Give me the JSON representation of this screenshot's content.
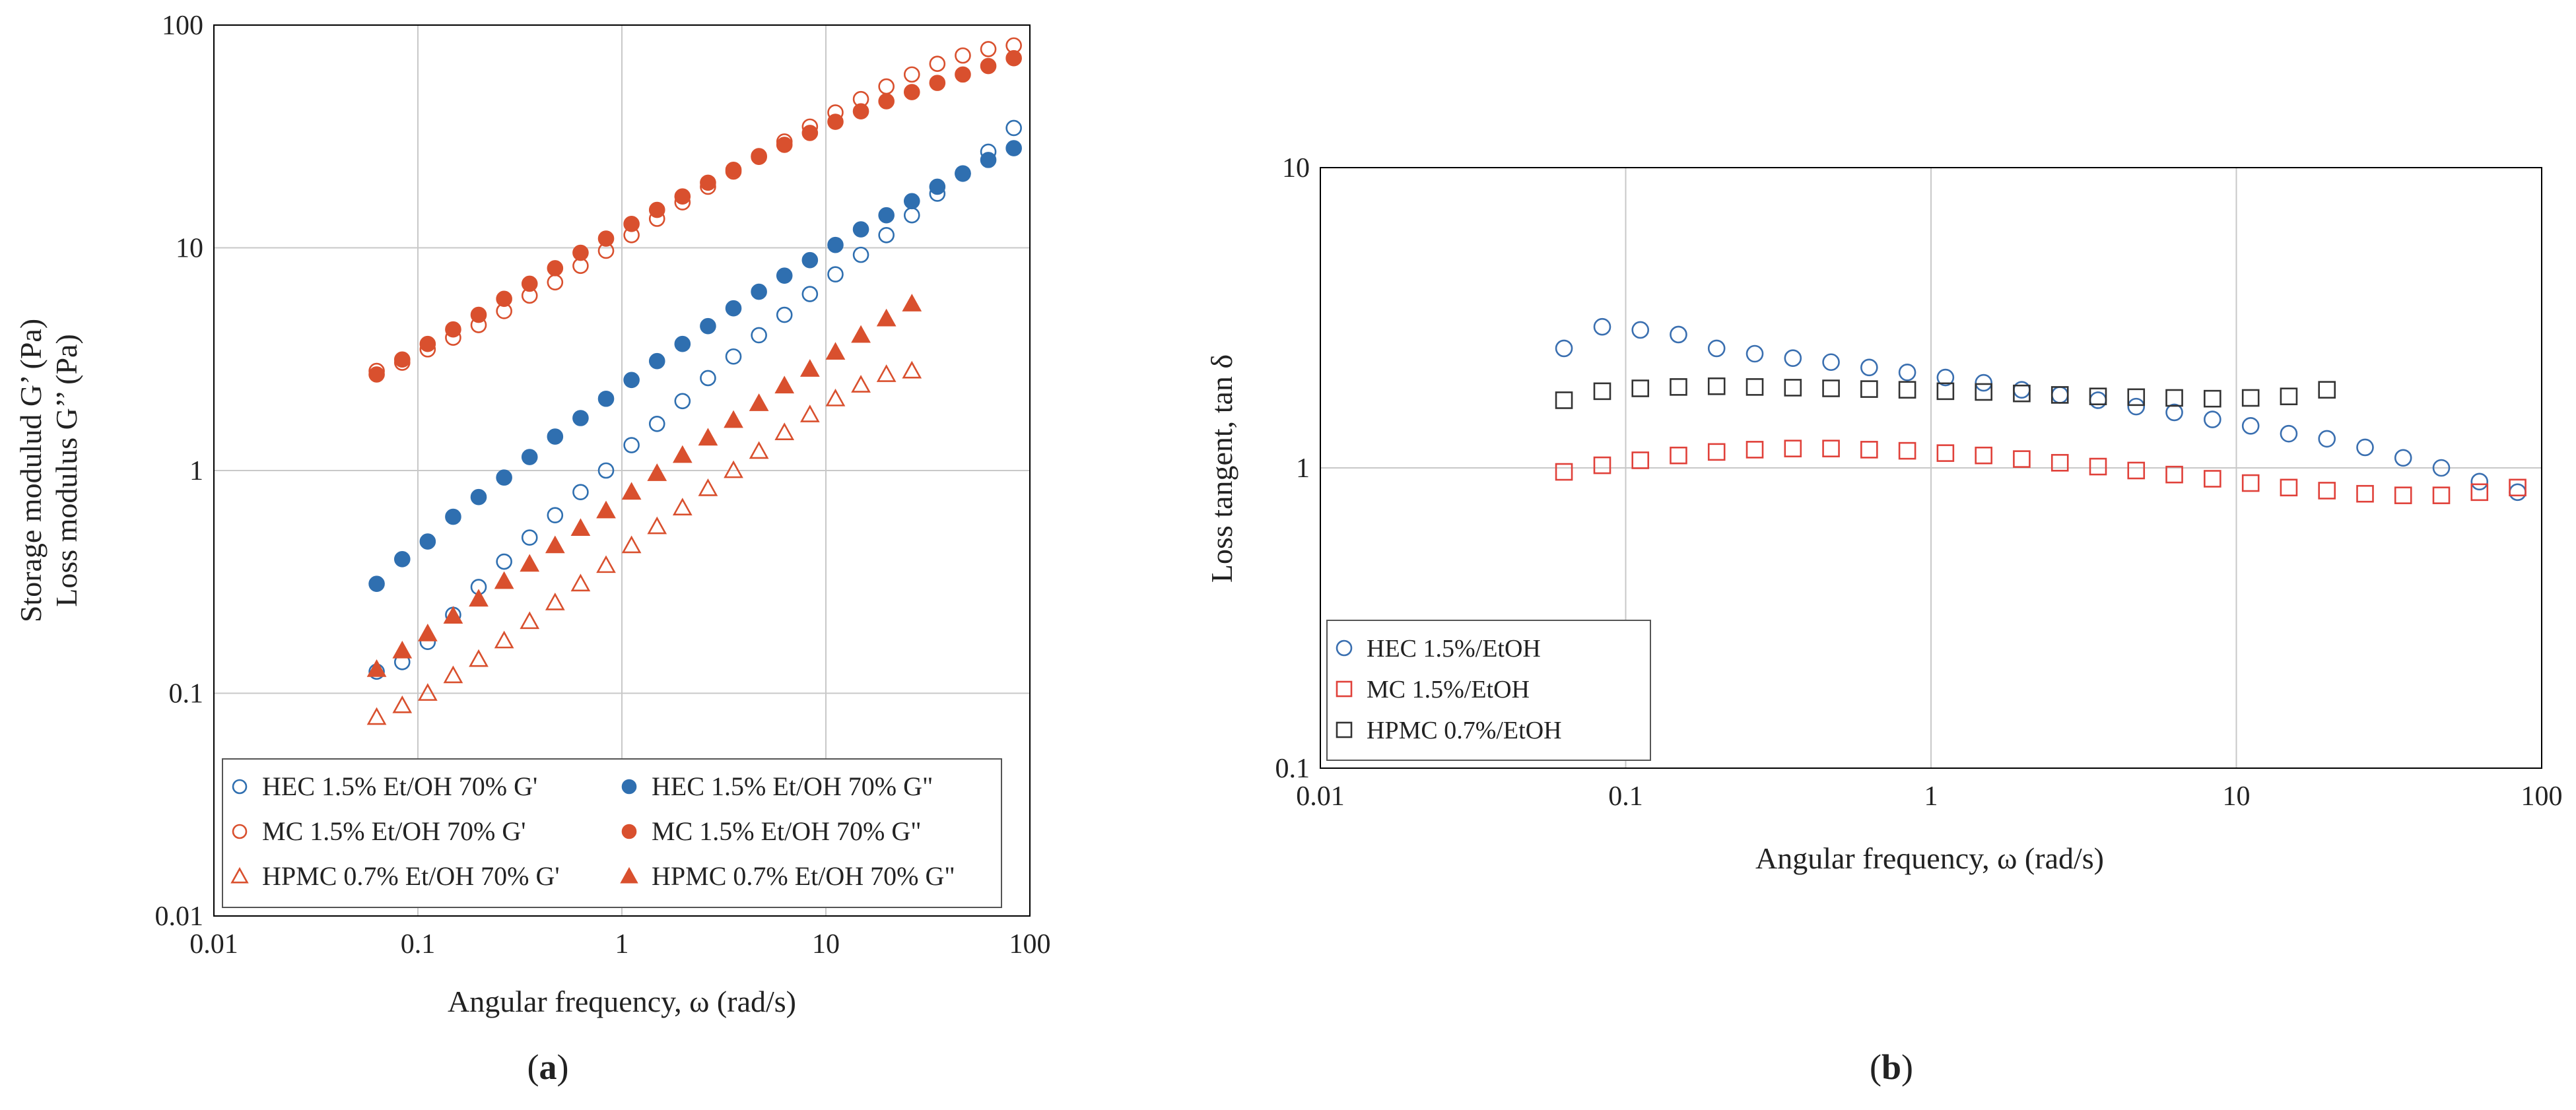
{
  "chart_data": [
    {
      "type": "scatter",
      "panel_label": "a",
      "xlabel": "Angular frequency, ω (rad/s)",
      "ylabel_lines": [
        "Storage modulud G’ (Pa)",
        "Loss modulus G’’ (Pa)"
      ],
      "x_scale": "log",
      "y_scale": "log",
      "xlim": [
        0.01,
        100
      ],
      "ylim": [
        0.01,
        100
      ],
      "x_ticks": [
        0.01,
        0.1,
        1,
        10,
        100
      ],
      "x_tick_labels": [
        "0.01",
        "0.1",
        "1",
        "10",
        "100"
      ],
      "y_ticks": [
        0.01,
        0.1,
        1,
        10,
        100
      ],
      "y_tick_labels": [
        "0.01",
        "0.1",
        "1",
        "10",
        "100"
      ],
      "grid": true,
      "legend_position": "bottom",
      "legend_columns": 2,
      "x": [
        0.0628,
        0.0838,
        0.1117,
        0.1489,
        0.1985,
        0.2647,
        0.3529,
        0.4705,
        0.6273,
        0.8363,
        1.115,
        1.487,
        1.982,
        2.643,
        3.524,
        4.698,
        6.264,
        8.352,
        11.14,
        14.85,
        19.8,
        26.4,
        35.19,
        46.92,
        62.56,
        83.41
      ],
      "series": [
        {
          "name": "HEC 1.5% Et/OH 70% G'",
          "color": "#2f6fb0",
          "marker": "circle",
          "filled": false,
          "values": [
            0.125,
            0.138,
            0.17,
            0.225,
            0.3,
            0.39,
            0.5,
            0.63,
            0.8,
            1.0,
            1.3,
            1.62,
            2.05,
            2.6,
            3.25,
            4.05,
            5.0,
            6.2,
            7.6,
            9.3,
            11.4,
            14.0,
            17.5,
            21.5,
            27.0,
            34.5
          ]
        },
        {
          "name": "HEC 1.5% Et/OH 70% G\"",
          "color": "#2f6fb0",
          "marker": "circle",
          "filled": true,
          "values": [
            0.31,
            0.4,
            0.48,
            0.62,
            0.76,
            0.93,
            1.15,
            1.42,
            1.72,
            2.1,
            2.55,
            3.1,
            3.7,
            4.45,
            5.35,
            6.35,
            7.5,
            8.8,
            10.3,
            12.1,
            14.0,
            16.2,
            18.8,
            21.6,
            24.8,
            28.0
          ]
        },
        {
          "name": "MC 1.5% Et/OH 70% G'",
          "color": "#d9502e",
          "marker": "circle",
          "filled": false,
          "values": [
            2.8,
            3.05,
            3.5,
            3.95,
            4.5,
            5.2,
            6.1,
            7.0,
            8.3,
            9.7,
            11.4,
            13.5,
            16.0,
            18.8,
            22.0,
            25.8,
            30.0,
            35.0,
            40.5,
            46.5,
            53.0,
            60.0,
            67.0,
            73.0,
            78.0,
            81.0
          ]
        },
        {
          "name": "MC 1.5% Et/OH 70% G\"",
          "color": "#d9502e",
          "marker": "circle",
          "filled": true,
          "values": [
            2.7,
            3.15,
            3.7,
            4.3,
            5.0,
            5.9,
            6.9,
            8.1,
            9.5,
            11.0,
            12.8,
            14.8,
            17.0,
            19.6,
            22.4,
            25.6,
            29.0,
            32.8,
            36.8,
            41.0,
            45.5,
            50.0,
            55.0,
            60.0,
            65.5,
            71.0
          ]
        },
        {
          "name": "HPMC 0.7% Et/OH 70% G'",
          "color": "#d9502e",
          "marker": "triangle",
          "filled": false,
          "values": [
            0.078,
            0.088,
            0.1,
            0.12,
            0.142,
            0.172,
            0.21,
            0.255,
            0.31,
            0.375,
            0.46,
            0.56,
            0.68,
            0.83,
            1.0,
            1.22,
            1.48,
            1.78,
            2.1,
            2.42,
            2.7,
            2.8
          ]
        },
        {
          "name": "HPMC 0.7% Et/OH 70% G\"",
          "color": "#d9502e",
          "marker": "triangle",
          "filled": true,
          "values": [
            0.128,
            0.155,
            0.185,
            0.222,
            0.265,
            0.318,
            0.38,
            0.46,
            0.55,
            0.66,
            0.8,
            0.97,
            1.17,
            1.4,
            1.68,
            2.0,
            2.4,
            2.85,
            3.4,
            4.05,
            4.8,
            5.6
          ]
        }
      ]
    },
    {
      "type": "scatter",
      "panel_label": "b",
      "xlabel": "Angular frequency, ω (rad/s)",
      "ylabel": "Loss tangent, tan δ",
      "x_scale": "log",
      "y_scale": "log",
      "xlim": [
        0.01,
        100
      ],
      "ylim": [
        0.1,
        10
      ],
      "x_ticks": [
        0.01,
        0.1,
        1,
        10,
        100
      ],
      "x_tick_labels": [
        "0.01",
        "0.1",
        "1",
        "10",
        "100"
      ],
      "y_ticks": [
        0.1,
        1,
        10
      ],
      "y_tick_labels": [
        "0.1",
        "1",
        "10"
      ],
      "grid": true,
      "legend_position": "bottom-left",
      "x": [
        0.0628,
        0.0838,
        0.1117,
        0.1489,
        0.1985,
        0.2647,
        0.3529,
        0.4705,
        0.6273,
        0.8363,
        1.115,
        1.487,
        1.982,
        2.643,
        3.524,
        4.698,
        6.264,
        8.352,
        11.14,
        14.85,
        19.8,
        26.4,
        35.19,
        46.92,
        62.56,
        83.41
      ],
      "series": [
        {
          "name": "HEC 1.5%/EtOH",
          "color": "#3a6fb0",
          "marker": "circle",
          "filled": false,
          "values": [
            2.5,
            2.95,
            2.88,
            2.78,
            2.5,
            2.4,
            2.32,
            2.25,
            2.16,
            2.08,
            2.0,
            1.92,
            1.82,
            1.75,
            1.68,
            1.6,
            1.53,
            1.45,
            1.38,
            1.3,
            1.25,
            1.17,
            1.08,
            1.0,
            0.9,
            0.83
          ]
        },
        {
          "name": "MC 1.5%/EtOH",
          "color": "#e0413a",
          "marker": "square",
          "filled": false,
          "values": [
            0.97,
            1.02,
            1.06,
            1.1,
            1.13,
            1.15,
            1.16,
            1.16,
            1.15,
            1.14,
            1.12,
            1.1,
            1.07,
            1.04,
            1.01,
            0.98,
            0.95,
            0.92,
            0.89,
            0.86,
            0.84,
            0.82,
            0.81,
            0.81,
            0.83,
            0.86
          ]
        },
        {
          "name": "HPMC 0.7%/EtOH",
          "color": "#333333",
          "marker": "square",
          "filled": false,
          "values": [
            1.68,
            1.8,
            1.84,
            1.86,
            1.87,
            1.86,
            1.85,
            1.84,
            1.83,
            1.82,
            1.8,
            1.79,
            1.77,
            1.75,
            1.73,
            1.72,
            1.71,
            1.7,
            1.71,
            1.73,
            1.82
          ]
        }
      ]
    }
  ]
}
